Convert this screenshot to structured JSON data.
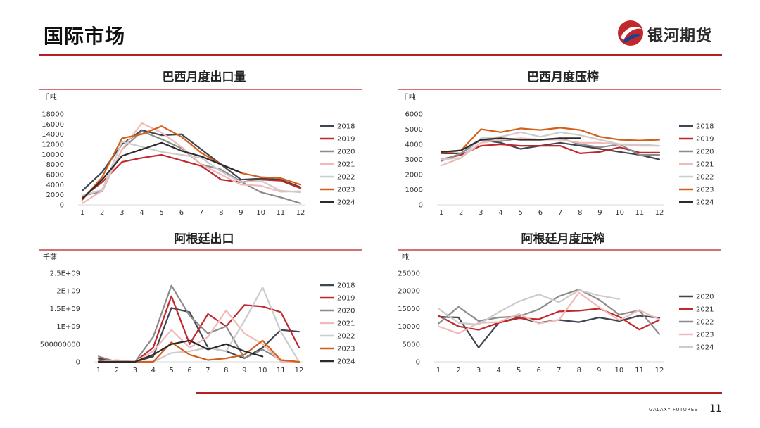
{
  "header": {
    "title": "国际市场",
    "logo_text": "银河期货"
  },
  "footer": {
    "brand": "GALAXY FUTURES",
    "page_number": "11"
  },
  "colors": {
    "accent": "#b51f24"
  },
  "chart_data": [
    {
      "type": "line",
      "title": "巴西月度出口量",
      "unit": "千吨",
      "x": [
        1,
        2,
        3,
        4,
        5,
        6,
        7,
        8,
        9,
        10,
        11,
        12
      ],
      "ylim": [
        0,
        18000
      ],
      "yticks": [
        "0",
        "2000",
        "4000",
        "6000",
        "8000",
        "10000",
        "12000",
        "14000",
        "16000",
        "18000"
      ],
      "legend_position": "right",
      "series": [
        {
          "name": "2018",
          "color": "#3f4652",
          "values": [
            2800,
            6500,
            12000,
            14800,
            13800,
            14000,
            11000,
            8000,
            5000,
            5200,
            5000,
            3500
          ]
        },
        {
          "name": "2019",
          "color": "#c0282d",
          "values": [
            1500,
            4500,
            8500,
            9300,
            9900,
            8800,
            7700,
            5000,
            4500,
            5000,
            4800,
            3300
          ]
        },
        {
          "name": "2020",
          "color": "#8c8c8c",
          "values": [
            1800,
            2700,
            11000,
            14600,
            13000,
            11200,
            8000,
            7000,
            4600,
            2500,
            1500,
            300
          ]
        },
        {
          "name": "2021",
          "color": "#f2b9b9",
          "values": [
            300,
            2800,
            11000,
            16200,
            14300,
            11500,
            8000,
            6000,
            4000,
            3800,
            2600,
            2700
          ]
        },
        {
          "name": "2022",
          "color": "#cccccc",
          "values": [
            1800,
            3000,
            12500,
            11500,
            10500,
            9900,
            9300,
            6600,
            4500,
            4800,
            2800,
            2500
          ]
        },
        {
          "name": "2023",
          "color": "#d2601a",
          "values": [
            1000,
            5500,
            13200,
            14000,
            15600,
            13500,
            10300,
            8000,
            6300,
            5500,
            5300,
            4000
          ]
        },
        {
          "name": "2024",
          "color": "#2b2b2b",
          "values": [
            1200,
            5000,
            9700,
            11000,
            12300,
            10700,
            9600,
            8000,
            6400,
            null,
            null,
            null
          ]
        }
      ]
    },
    {
      "type": "line",
      "title": "巴西月度压榨",
      "unit": "千吨",
      "x": [
        1,
        2,
        3,
        4,
        5,
        6,
        7,
        8,
        9,
        10,
        11,
        12
      ],
      "ylim": [
        0,
        6000
      ],
      "yticks": [
        "0",
        "1000",
        "2000",
        "3000",
        "4000",
        "5000",
        "6000"
      ],
      "legend_position": "right",
      "series": [
        {
          "name": "2018",
          "color": "#3f4652",
          "values": [
            3400,
            3400,
            4300,
            4100,
            3700,
            3900,
            4100,
            3900,
            3700,
            3500,
            3300,
            3000
          ]
        },
        {
          "name": "2019",
          "color": "#c0282d",
          "values": [
            3000,
            3300,
            3900,
            4000,
            3900,
            3900,
            3900,
            3400,
            3500,
            3800,
            3450,
            3450
          ]
        },
        {
          "name": "2020",
          "color": "#8c8c8c",
          "values": [
            2900,
            3400,
            4300,
            4200,
            4400,
            4300,
            4400,
            4000,
            3800,
            4000,
            3300,
            3300
          ]
        },
        {
          "name": "2021",
          "color": "#f2b9b9",
          "values": [
            2600,
            3100,
            4100,
            4300,
            4400,
            4300,
            4300,
            4100,
            4100,
            4000,
            3900,
            3900
          ]
        },
        {
          "name": "2022",
          "color": "#cccccc",
          "values": [
            3000,
            3100,
            4400,
            4500,
            4800,
            4500,
            4800,
            4600,
            4300,
            4000,
            4000,
            3900
          ]
        },
        {
          "name": "2023",
          "color": "#d2601a",
          "values": [
            3400,
            3600,
            5000,
            4800,
            5050,
            4950,
            5100,
            4950,
            4500,
            4300,
            4250,
            4300
          ]
        },
        {
          "name": "2024",
          "color": "#2b2b2b",
          "values": [
            3500,
            3600,
            4300,
            4400,
            4300,
            4300,
            4400,
            4400,
            null,
            null,
            null,
            null
          ]
        }
      ]
    },
    {
      "type": "line",
      "title": "阿根廷出口",
      "unit": "千蒲",
      "x": [
        1,
        2,
        3,
        4,
        5,
        6,
        7,
        8,
        9,
        10,
        11,
        12
      ],
      "ylim": [
        0,
        2500000000
      ],
      "yticks": [
        "0",
        "500000000",
        "1E+09",
        "1.5E+09",
        "2E+09",
        "2.5E+09"
      ],
      "legend_position": "right",
      "series": [
        {
          "name": "2018",
          "color": "#3f4652",
          "values": [
            100000000,
            0,
            0,
            150000000,
            1520000000,
            1400000000,
            400000000,
            300000000,
            100000000,
            400000000,
            900000000,
            850000000
          ]
        },
        {
          "name": "2019",
          "color": "#c0282d",
          "values": [
            50000000,
            30000000,
            0,
            400000000,
            1850000000,
            500000000,
            1350000000,
            1000000000,
            1600000000,
            1560000000,
            1400000000,
            400000000
          ]
        },
        {
          "name": "2020",
          "color": "#8c8c8c",
          "values": [
            150000000,
            0,
            0,
            700000000,
            2150000000,
            1300000000,
            800000000,
            1000000000,
            100000000,
            350000000,
            50000000,
            0
          ]
        },
        {
          "name": "2021",
          "color": "#f2b9b9",
          "values": [
            0,
            50000000,
            0,
            300000000,
            900000000,
            400000000,
            700000000,
            1450000000,
            800000000,
            500000000,
            0,
            0
          ]
        },
        {
          "name": "2022",
          "color": "#cccccc",
          "values": [
            0,
            0,
            0,
            0,
            250000000,
            300000000,
            400000000,
            300000000,
            1150000000,
            2100000000,
            850000000,
            0
          ]
        },
        {
          "name": "2023",
          "color": "#d2601a",
          "values": [
            0,
            0,
            0,
            0,
            550000000,
            200000000,
            50000000,
            100000000,
            200000000,
            600000000,
            50000000,
            0
          ]
        },
        {
          "name": "2024",
          "color": "#2b2b2b",
          "values": [
            0,
            0,
            0,
            200000000,
            500000000,
            600000000,
            350000000,
            500000000,
            300000000,
            150000000,
            null,
            null
          ]
        }
      ]
    },
    {
      "type": "line",
      "title": "阿根廷月度压榨",
      "unit": "吨",
      "x": [
        1,
        2,
        3,
        4,
        5,
        6,
        7,
        8,
        9,
        10,
        11,
        12
      ],
      "ylim": [
        0,
        25000
      ],
      "yticks": [
        "0",
        "5000",
        "10000",
        "15000",
        "20000",
        "25000"
      ],
      "legend_position": "right",
      "series": [
        {
          "name": "2020",
          "color": "#3f4652",
          "values": [
            12700,
            12500,
            4000,
            11000,
            12500,
            11000,
            11800,
            11200,
            12500,
            11500,
            13000,
            12400
          ]
        },
        {
          "name": "2021",
          "color": "#c0282d",
          "values": [
            13000,
            10000,
            9000,
            11000,
            12300,
            12000,
            14200,
            14400,
            15000,
            12700,
            9100,
            11800
          ]
        },
        {
          "name": "2022",
          "color": "#8c8c8c",
          "values": [
            10800,
            15500,
            11500,
            12500,
            12800,
            14800,
            18500,
            20400,
            17500,
            13300,
            14500,
            7800
          ]
        },
        {
          "name": "2023",
          "color": "#f2b9b9",
          "values": [
            10000,
            8000,
            11000,
            11200,
            13500,
            10800,
            11800,
            19500,
            15400,
            11700,
            14600,
            11900
          ]
        },
        {
          "name": "2024",
          "color": "#cccccc",
          "values": [
            15000,
            11000,
            10500,
            14000,
            17000,
            19000,
            16800,
            20200,
            18700,
            17700,
            null,
            null
          ]
        }
      ]
    }
  ]
}
